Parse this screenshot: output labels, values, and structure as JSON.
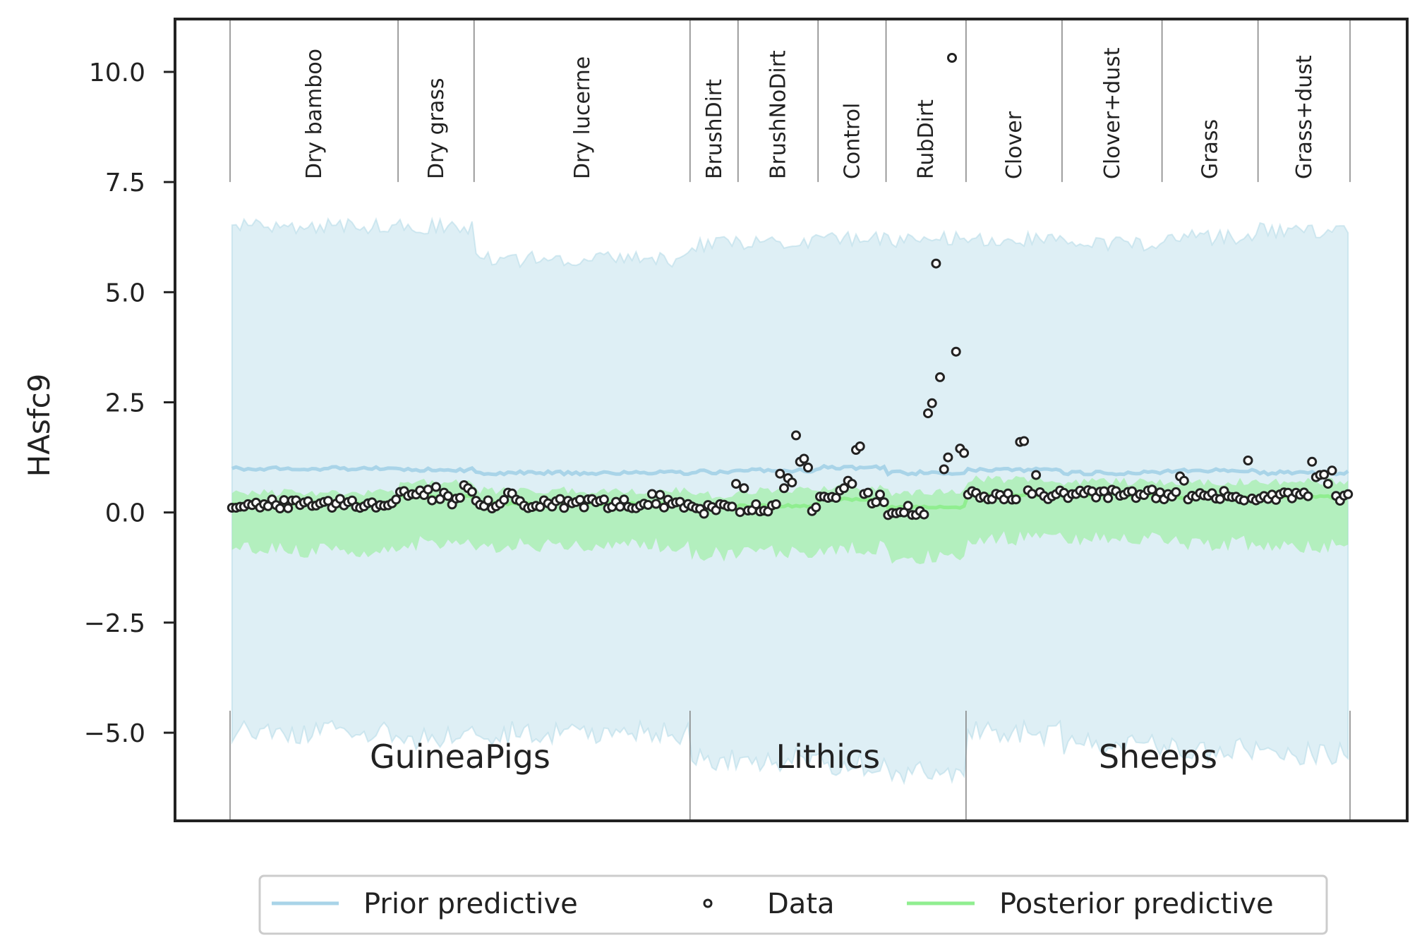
{
  "chart_data": {
    "type": "line",
    "ylabel": "HAsfc9",
    "ylim": [
      -7.0,
      11.2
    ],
    "yticks": [
      10.0,
      7.5,
      5.0,
      2.5,
      0.0,
      -2.5,
      -5.0
    ],
    "ytick_labels": [
      "10.0",
      "7.5",
      "5.0",
      "2.5",
      "0.0",
      "−2.5",
      "−5.0"
    ],
    "n_samples": 280,
    "groups": [
      {
        "name": "GuineaPigs",
        "start": 0,
        "end": 115
      },
      {
        "name": "Lithics",
        "start": 115,
        "end": 184
      },
      {
        "name": "Sheeps",
        "start": 184,
        "end": 280
      }
    ],
    "treatments": [
      {
        "name": "Dry bamboo",
        "start": 0,
        "end": 42,
        "prior_mean": 1.0,
        "prior_upper": 6.5,
        "prior_lower": -5.0,
        "post_mean": 0.2,
        "post_upper": 0.45,
        "post_lower": -0.85,
        "data_base": 0.2
      },
      {
        "name": "Dry grass",
        "start": 42,
        "end": 61,
        "prior_mean": 0.97,
        "prior_upper": 6.5,
        "prior_lower": -5.1,
        "post_mean": 0.38,
        "post_upper": 0.7,
        "post_lower": -0.7,
        "data_base": 0.38
      },
      {
        "name": "Dry lucerne",
        "start": 61,
        "end": 115,
        "prior_mean": 0.9,
        "prior_upper": 5.75,
        "prior_lower": -5.0,
        "post_mean": 0.2,
        "post_upper": 0.5,
        "post_lower": -0.75,
        "data_base": 0.2
      },
      {
        "name": "BrushDirt",
        "start": 115,
        "end": 127,
        "prior_mean": 0.92,
        "prior_upper": 6.1,
        "prior_lower": -5.6,
        "post_mean": 0.1,
        "post_upper": 0.4,
        "post_lower": -0.95,
        "data_base": 0.08
      },
      {
        "name": "BrushNoDirt",
        "start": 127,
        "end": 147,
        "prior_mean": 0.95,
        "prior_upper": 6.15,
        "prior_lower": -5.6,
        "post_mean": 0.15,
        "post_upper": 0.5,
        "post_lower": -0.9,
        "data_base": 0.1
      },
      {
        "name": "Control",
        "start": 147,
        "end": 164,
        "prior_mean": 1.02,
        "prior_upper": 6.2,
        "prior_lower": -5.7,
        "post_mean": 0.3,
        "post_upper": 0.55,
        "post_lower": -0.8,
        "data_base": 0.3
      },
      {
        "name": "RubDirt",
        "start": 164,
        "end": 184,
        "prior_mean": 0.9,
        "prior_upper": 6.2,
        "prior_lower": -5.9,
        "post_mean": 0.12,
        "post_upper": 0.45,
        "post_lower": -1.0,
        "data_base": 0.05
      },
      {
        "name": "Clover",
        "start": 184,
        "end": 208,
        "prior_mean": 0.97,
        "prior_upper": 6.2,
        "prior_lower": -5.0,
        "post_mean": 0.4,
        "post_upper": 0.75,
        "post_lower": -0.6,
        "data_base": 0.4
      },
      {
        "name": "Clover+dust",
        "start": 208,
        "end": 233,
        "prior_mean": 0.9,
        "prior_upper": 6.1,
        "prior_lower": -5.3,
        "post_mean": 0.4,
        "post_upper": 0.7,
        "post_lower": -0.6,
        "data_base": 0.42
      },
      {
        "name": "Grass",
        "start": 233,
        "end": 257,
        "prior_mean": 0.95,
        "prior_upper": 6.25,
        "prior_lower": -5.4,
        "post_mean": 0.35,
        "post_upper": 0.7,
        "post_lower": -0.7,
        "data_base": 0.38
      },
      {
        "name": "Grass+dust",
        "start": 257,
        "end": 280,
        "prior_mean": 0.9,
        "prior_upper": 6.4,
        "prior_lower": -5.5,
        "post_mean": 0.35,
        "post_upper": 0.7,
        "post_lower": -0.75,
        "data_base": 0.35
      }
    ],
    "data_outliers": [
      {
        "i": 126,
        "y": 0.65
      },
      {
        "i": 128,
        "y": 0.55
      },
      {
        "i": 137,
        "y": 0.88
      },
      {
        "i": 138,
        "y": 0.55
      },
      {
        "i": 139,
        "y": 0.78
      },
      {
        "i": 140,
        "y": 0.68
      },
      {
        "i": 141,
        "y": 1.75
      },
      {
        "i": 142,
        "y": 1.15
      },
      {
        "i": 143,
        "y": 1.22
      },
      {
        "i": 144,
        "y": 1.02
      },
      {
        "i": 152,
        "y": 0.5
      },
      {
        "i": 153,
        "y": 0.55
      },
      {
        "i": 154,
        "y": 0.72
      },
      {
        "i": 155,
        "y": 0.65
      },
      {
        "i": 156,
        "y": 1.42
      },
      {
        "i": 157,
        "y": 1.5
      },
      {
        "i": 158,
        "y": 0.42
      },
      {
        "i": 159,
        "y": 0.45
      },
      {
        "i": 174,
        "y": 2.25
      },
      {
        "i": 175,
        "y": 2.48
      },
      {
        "i": 176,
        "y": 5.65
      },
      {
        "i": 177,
        "y": 3.07
      },
      {
        "i": 178,
        "y": 0.98
      },
      {
        "i": 179,
        "y": 1.25
      },
      {
        "i": 180,
        "y": 10.32
      },
      {
        "i": 181,
        "y": 3.65
      },
      {
        "i": 182,
        "y": 1.45
      },
      {
        "i": 183,
        "y": 1.35
      },
      {
        "i": 197,
        "y": 1.6
      },
      {
        "i": 198,
        "y": 1.62
      },
      {
        "i": 201,
        "y": 0.85
      },
      {
        "i": 237,
        "y": 0.82
      },
      {
        "i": 238,
        "y": 0.72
      },
      {
        "i": 254,
        "y": 1.18
      },
      {
        "i": 270,
        "y": 1.15
      },
      {
        "i": 271,
        "y": 0.8
      },
      {
        "i": 272,
        "y": 0.85
      },
      {
        "i": 273,
        "y": 0.86
      },
      {
        "i": 274,
        "y": 0.65
      },
      {
        "i": 275,
        "y": 0.95
      },
      {
        "i": 47,
        "y": 0.5
      },
      {
        "i": 49,
        "y": 0.52
      },
      {
        "i": 51,
        "y": 0.58
      },
      {
        "i": 55,
        "y": 0.18
      },
      {
        "i": 58,
        "y": 0.62
      },
      {
        "i": 59,
        "y": 0.55
      },
      {
        "i": 69,
        "y": 0.45
      },
      {
        "i": 70,
        "y": 0.43
      },
      {
        "i": 105,
        "y": 0.42
      },
      {
        "i": 107,
        "y": 0.4
      }
    ],
    "legend": {
      "position": "bottom-center",
      "entries": [
        {
          "label": "Prior predictive",
          "kind": "line",
          "color": "#a9d4e8"
        },
        {
          "label": "Data",
          "kind": "marker",
          "color": "#222222"
        },
        {
          "label": "Posterior predictive",
          "kind": "line",
          "color": "#90ee90"
        }
      ]
    },
    "colors": {
      "prior_band": "#add8e6",
      "prior_line": "#a9d4e8",
      "posterior_band": "#90ee90",
      "posterior_line": "#90ee90",
      "data_marker": "#222222",
      "divider": "#808080",
      "frame": "#222222"
    }
  }
}
